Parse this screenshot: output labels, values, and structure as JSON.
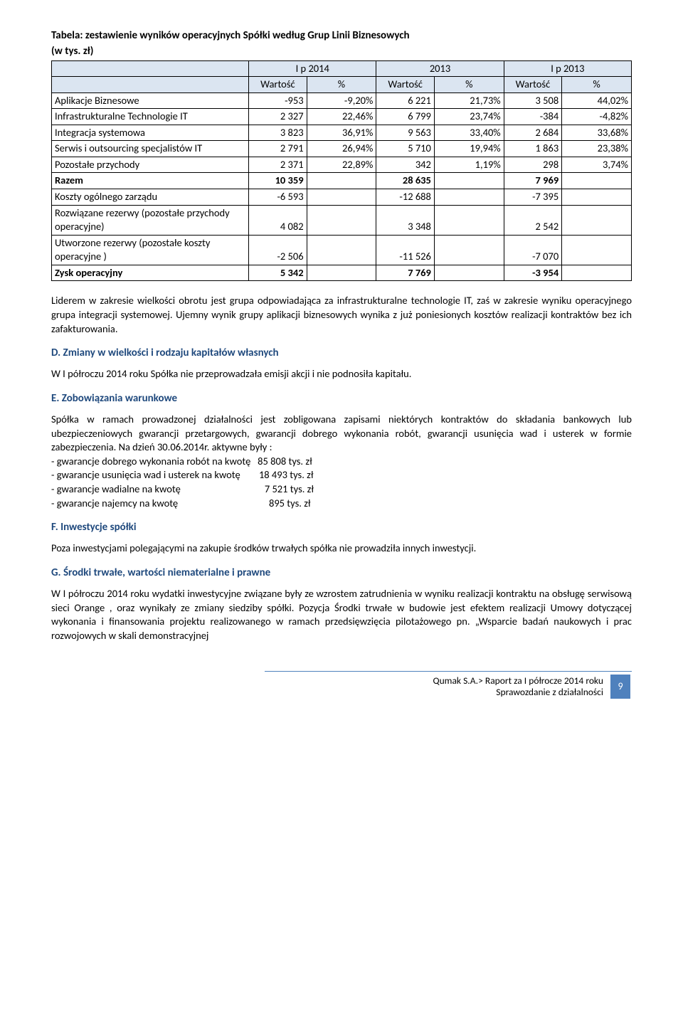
{
  "table": {
    "title_line1": "Tabela: zestawienie wyników operacyjnych Spółki według Grup Linii Biznesowych",
    "title_line2": "(w tys. zł)",
    "period_headers": [
      "I p 2014",
      "2013",
      "I p 2013"
    ],
    "sub_headers": [
      "Wartość",
      "%",
      "Wartość",
      "%",
      "Wartość",
      "%"
    ],
    "rows": [
      {
        "label": "Aplikacje Biznesowe",
        "c": [
          "-953",
          "-9,20%",
          "6 221",
          "21,73%",
          "3 508",
          "44,02%"
        ]
      },
      {
        "label": "Infrastrukturalne Technologie IT",
        "c": [
          "2 327",
          "22,46%",
          "6 799",
          "23,74%",
          "-384",
          "-4,82%"
        ]
      },
      {
        "label": "Integracja systemowa",
        "c": [
          "3 823",
          "36,91%",
          "9 563",
          "33,40%",
          "2 684",
          "33,68%"
        ]
      },
      {
        "label": "Serwis i outsourcing specjalistów IT",
        "c": [
          "2 791",
          "26,94%",
          "5 710",
          "19,94%",
          "1 863",
          "23,38%"
        ]
      },
      {
        "label": "Pozostałe przychody",
        "c": [
          "2 371",
          "22,89%",
          "342",
          "1,19%",
          "298",
          "3,74%"
        ]
      },
      {
        "label": "Razem",
        "c": [
          "10 359",
          "",
          "28 635",
          "",
          "7 969",
          ""
        ],
        "bold": true
      },
      {
        "label": "Koszty ogólnego zarządu",
        "c": [
          "-6 593",
          "",
          "-12 688",
          "",
          "-7 395",
          ""
        ]
      },
      {
        "label": "Rozwiązane rezerwy  (pozostałe przychody operacyjne)",
        "c": [
          "4 082",
          "",
          "3 348",
          "",
          "2 542",
          ""
        ]
      },
      {
        "label": "Utworzone rezerwy   (pozostałe koszty operacyjne )",
        "c": [
          "-2 506",
          "",
          "-11 526",
          "",
          "-7 070",
          ""
        ]
      },
      {
        "label": "Zysk operacyjny",
        "c": [
          "5 342",
          "",
          "7 769",
          "",
          "-3 954",
          ""
        ],
        "bold": true
      }
    ],
    "col_widths": [
      "34%",
      "10%",
      "12%",
      "10%",
      "12%",
      "10%",
      "12%"
    ]
  },
  "para1": "Liderem w zakresie wielkości obrotu jest grupa odpowiadająca za infrastrukturalne technologie IT, zaś w zakresie wyniku operacyjnego grupa integracji systemowej. Ujemny wynik grupy aplikacji biznesowych wynika z już poniesionych kosztów realizacji kontraktów bez ich zafakturowania.",
  "secD": {
    "head": "D. Zmiany w wielkości i rodzaju kapitałów własnych",
    "body": "W I półroczu 2014 roku Spółka nie przeprowadzała emisji akcji i nie podnosiła kapitału."
  },
  "secE": {
    "head": "E. Zobowiązania warunkowe",
    "body": "Spółka w ramach prowadzonej działalności jest zobligowana zapisami niektórych kontraktów do składania bankowych lub ubezpieczeniowych gwarancji przetargowych, gwarancji dobrego wykonania robót, gwarancji usunięcia wad i usterek w formie zabezpieczenia. Na dzień 30.06.2014r. aktywne były :",
    "list": [
      {
        "l": "- gwarancje dobrego wykonania robót na kwotę   ",
        "r": "85 808 tys. zł"
      },
      {
        "l": "- gwarancje usunięcia wad i usterek na kwotę        ",
        "r": "18 493 tys. zł"
      },
      {
        "l": "- gwarancje wadialne na kwotę                                    ",
        "r": "7 521 tys. zł"
      },
      {
        "l": "- gwarancje najemcy na kwotę                                       ",
        "r": "895 tys. zł"
      }
    ]
  },
  "secF": {
    "head": "F. Inwestycje spółki",
    "body": "Poza inwestycjami polegającymi na zakupie środków trwałych spółka nie prowadziła innych inwestycji."
  },
  "secG": {
    "head": "G. Środki trwałe, wartości niematerialne i prawne",
    "body": "W I półroczu 2014 roku wydatki inwestycyjne związane były ze wzrostem zatrudnienia w wyniku realizacji kontraktu na obsługę serwisową sieci Orange , oraz wynikały ze zmiany siedziby spółki. Pozycja Środki trwałe w budowie jest efektem realizacji Umowy dotyczącej wykonania i finansowania projektu realizowanego w ramach przedsięwzięcia pilotażowego pn. „Wsparcie badań naukowych i prac rozwojowych w skali demonstracyjnej"
  },
  "footer": {
    "line1": "Qumak S.A.> Raport za I półrocze 2014 roku",
    "line2": "Sprawozdanie z działalności",
    "page": "9"
  },
  "colors": {
    "header_bg": "#dbe5f1",
    "section_head": "#1f497d",
    "accent": "#4f81bd"
  }
}
